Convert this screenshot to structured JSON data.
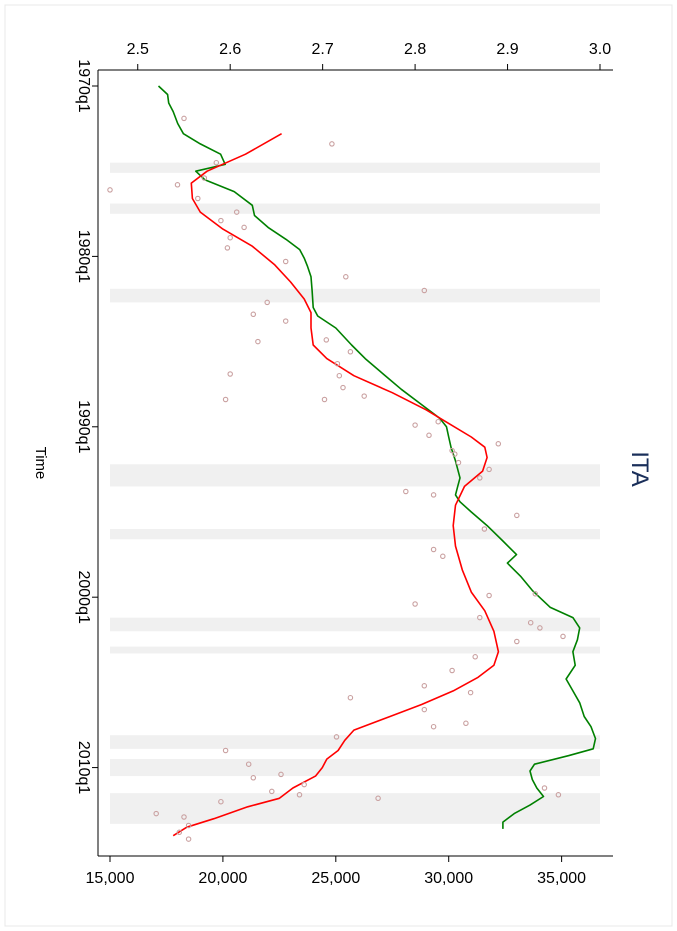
{
  "chart_data": {
    "type": "line",
    "title": "ITA",
    "xlabel": "Time",
    "time_axis": {
      "range": [
        1970.0,
        2014.25
      ],
      "ticks": [
        1970,
        1980,
        1990,
        2000,
        2010
      ],
      "tick_labels": [
        "1970q1",
        "1980q1",
        "1990q1",
        "2000q1",
        "2010q1"
      ]
    },
    "top_axis": {
      "range": [
        2.47,
        3.0
      ],
      "ticks": [
        2.5,
        2.6,
        2.7,
        2.8,
        2.9,
        3.0
      ],
      "tick_labels": [
        "2.5",
        "2.6",
        "2.7",
        "2.8",
        "2.9",
        "3.0"
      ]
    },
    "bottom_axis": {
      "range": [
        15000,
        36700
      ],
      "ticks": [
        15000,
        20000,
        25000,
        30000,
        35000
      ],
      "tick_labels": [
        "15,000",
        "20,000",
        "25,000",
        "30,000",
        "35,000"
      ]
    },
    "shaded_periods": [
      [
        1974.5,
        1975.1
      ],
      [
        1976.9,
        1977.5
      ],
      [
        1981.9,
        1982.7
      ],
      [
        1992.2,
        1993.5
      ],
      [
        1996.0,
        1996.6
      ],
      [
        2001.2,
        2002.0
      ],
      [
        2002.9,
        2003.3
      ],
      [
        2008.1,
        2008.9
      ],
      [
        2009.5,
        2010.5
      ],
      [
        2011.5,
        2013.3
      ]
    ],
    "series": [
      {
        "color": "#008000",
        "axis": "bottom",
        "points": [
          [
            1970.0,
            17150
          ],
          [
            1970.5,
            17550
          ],
          [
            1971.0,
            17600
          ],
          [
            1971.5,
            17800
          ],
          [
            1972.2,
            18000
          ],
          [
            1972.8,
            18250
          ],
          [
            1973.4,
            19000
          ],
          [
            1974.0,
            19900
          ],
          [
            1974.6,
            20100
          ],
          [
            1975.0,
            18800
          ],
          [
            1975.5,
            19200
          ],
          [
            1976.2,
            20500
          ],
          [
            1977.0,
            21300
          ],
          [
            1977.6,
            21400
          ],
          [
            1978.3,
            22000
          ],
          [
            1979.0,
            22800
          ],
          [
            1979.6,
            23400
          ],
          [
            1980.1,
            23600
          ],
          [
            1980.6,
            23750
          ],
          [
            1981.2,
            23900
          ],
          [
            1982.0,
            23950
          ],
          [
            1983.0,
            24000
          ],
          [
            1983.5,
            24200
          ],
          [
            1984.2,
            25000
          ],
          [
            1985.2,
            25700
          ],
          [
            1986.0,
            26300
          ],
          [
            1986.9,
            27100
          ],
          [
            1987.8,
            27900
          ],
          [
            1988.7,
            28800
          ],
          [
            1989.5,
            29600
          ],
          [
            1990.0,
            29900
          ],
          [
            1990.6,
            30000
          ],
          [
            1991.2,
            30100
          ],
          [
            1992.0,
            30300
          ],
          [
            1993.0,
            30500
          ],
          [
            1993.5,
            30400
          ],
          [
            1994.0,
            30300
          ],
          [
            1994.4,
            30500
          ],
          [
            1995.0,
            31000
          ],
          [
            1995.8,
            31700
          ],
          [
            1996.7,
            32400
          ],
          [
            1997.5,
            33000
          ],
          [
            1998.0,
            32600
          ],
          [
            1998.8,
            33200
          ],
          [
            1999.6,
            33700
          ],
          [
            2000.6,
            34500
          ],
          [
            2001.2,
            35500
          ],
          [
            2001.8,
            35800
          ],
          [
            2002.5,
            35700
          ],
          [
            2003.2,
            35500
          ],
          [
            2004.0,
            35600
          ],
          [
            2004.8,
            35200
          ],
          [
            2005.5,
            35500
          ],
          [
            2006.2,
            35800
          ],
          [
            2007.0,
            36000
          ],
          [
            2007.6,
            36300
          ],
          [
            2008.3,
            36500
          ],
          [
            2008.9,
            36400
          ],
          [
            2009.3,
            35300
          ],
          [
            2009.8,
            33800
          ],
          [
            2010.2,
            33600
          ],
          [
            2010.7,
            33700
          ],
          [
            2011.2,
            33900
          ],
          [
            2011.7,
            34200
          ],
          [
            2012.2,
            33600
          ],
          [
            2012.7,
            32900
          ],
          [
            2013.2,
            32400
          ],
          [
            2013.6,
            32400
          ]
        ]
      },
      {
        "color": "#ff0000",
        "axis": "bottom",
        "points": [
          [
            1972.8,
            22600
          ],
          [
            1974.0,
            21000
          ],
          [
            1975.0,
            19300
          ],
          [
            1975.7,
            18600
          ],
          [
            1976.6,
            18650
          ],
          [
            1977.4,
            19000
          ],
          [
            1978.4,
            20000
          ],
          [
            1979.4,
            21300
          ],
          [
            1980.5,
            22300
          ],
          [
            1981.5,
            23000
          ],
          [
            1982.5,
            23600
          ],
          [
            1983.3,
            23900
          ],
          [
            1984.2,
            23900
          ],
          [
            1985.2,
            24000
          ],
          [
            1986.0,
            24600
          ],
          [
            1987.0,
            25800
          ],
          [
            1988.0,
            27500
          ],
          [
            1989.0,
            29000
          ],
          [
            1989.8,
            30000
          ],
          [
            1990.6,
            31000
          ],
          [
            1991.2,
            31600
          ],
          [
            1991.8,
            31700
          ],
          [
            1992.6,
            31500
          ],
          [
            1993.5,
            30700
          ],
          [
            1994.6,
            30300
          ],
          [
            1995.8,
            30200
          ],
          [
            1997.0,
            30300
          ],
          [
            1998.4,
            30600
          ],
          [
            1999.7,
            31000
          ],
          [
            2000.8,
            31600
          ],
          [
            2002.0,
            32000
          ],
          [
            2003.2,
            32200
          ],
          [
            2004.0,
            32000
          ],
          [
            2004.7,
            31300
          ],
          [
            2005.5,
            30200
          ],
          [
            2006.3,
            28800
          ],
          [
            2007.0,
            27400
          ],
          [
            2007.8,
            25800
          ],
          [
            2008.4,
            25400
          ],
          [
            2009.0,
            25100
          ],
          [
            2009.5,
            24600
          ],
          [
            2010.0,
            24400
          ],
          [
            2010.5,
            24100
          ],
          [
            2011.2,
            23100
          ],
          [
            2011.8,
            22500
          ],
          [
            2012.3,
            21100
          ],
          [
            2013.0,
            19600
          ],
          [
            2013.5,
            18400
          ],
          [
            2014.0,
            17800
          ]
        ]
      }
    ],
    "scatter": {
      "color": "#c9a0a0",
      "axis": "top",
      "points": [
        [
          1971.9,
          2.55
        ],
        [
          1973.4,
          2.71
        ],
        [
          1974.5,
          2.585
        ],
        [
          1975.4,
          2.572
        ],
        [
          1975.8,
          2.543
        ],
        [
          1976.1,
          2.47
        ],
        [
          1976.6,
          2.565
        ],
        [
          1977.4,
          2.607
        ],
        [
          1977.9,
          2.59
        ],
        [
          1978.3,
          2.615
        ],
        [
          1978.9,
          2.6
        ],
        [
          1979.5,
          2.597
        ],
        [
          1980.3,
          2.66
        ],
        [
          1981.2,
          2.725
        ],
        [
          1982.0,
          2.81
        ],
        [
          1982.7,
          2.64
        ],
        [
          1983.4,
          2.625
        ],
        [
          1983.8,
          2.66
        ],
        [
          1984.9,
          2.704
        ],
        [
          1985.0,
          2.63
        ],
        [
          1985.6,
          2.73
        ],
        [
          1986.3,
          2.716
        ],
        [
          1986.9,
          2.6
        ],
        [
          1987.0,
          2.718
        ],
        [
          1987.7,
          2.722
        ],
        [
          1988.2,
          2.745
        ],
        [
          1988.4,
          2.702
        ],
        [
          1988.4,
          2.595
        ],
        [
          1989.7,
          2.825
        ],
        [
          1989.9,
          2.8
        ],
        [
          1990.5,
          2.815
        ],
        [
          1991.0,
          2.89
        ],
        [
          1991.4,
          2.84
        ],
        [
          1991.6,
          2.843
        ],
        [
          1992.1,
          2.847
        ],
        [
          1992.5,
          2.88
        ],
        [
          1993.0,
          2.87
        ],
        [
          1993.8,
          2.79
        ],
        [
          1994.0,
          2.82
        ],
        [
          1995.2,
          2.91
        ],
        [
          1996.0,
          2.875
        ],
        [
          1997.2,
          2.82
        ],
        [
          1997.6,
          2.83
        ],
        [
          1999.9,
          2.88
        ],
        [
          1999.8,
          2.93
        ],
        [
          2000.4,
          2.8
        ],
        [
          2001.2,
          2.87
        ],
        [
          2001.5,
          2.925
        ],
        [
          2001.8,
          2.935
        ],
        [
          2002.3,
          2.96
        ],
        [
          2002.6,
          2.91
        ],
        [
          2003.5,
          2.865
        ],
        [
          2004.3,
          2.84
        ],
        [
          2005.2,
          2.81
        ],
        [
          2005.6,
          2.86
        ],
        [
          2005.9,
          2.73
        ],
        [
          2006.6,
          2.81
        ],
        [
          2007.4,
          2.855
        ],
        [
          2007.6,
          2.82
        ],
        [
          2008.2,
          2.715
        ],
        [
          2009.0,
          2.595
        ],
        [
          2009.8,
          2.62
        ],
        [
          2010.4,
          2.655
        ],
        [
          2010.6,
          2.625
        ],
        [
          2011.0,
          2.68
        ],
        [
          2011.4,
          2.645
        ],
        [
          2011.6,
          2.675
        ],
        [
          2011.8,
          2.76
        ],
        [
          2012.0,
          2.59
        ],
        [
          2012.7,
          2.52
        ],
        [
          2012.9,
          2.55
        ],
        [
          2013.4,
          2.555
        ],
        [
          2013.8,
          2.545
        ],
        [
          2014.2,
          2.555
        ],
        [
          2011.2,
          2.94
        ],
        [
          2011.6,
          2.955
        ]
      ]
    }
  }
}
